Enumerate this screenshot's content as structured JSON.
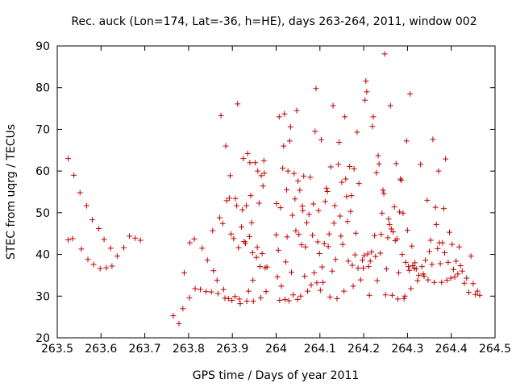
{
  "chart_data": {
    "type": "scatter",
    "title": "Rec. auck (Lon=174, Lat=-36, h=HE), days 263-264, 2011, window 002",
    "xlabel": "GPS time / Days of year 2011",
    "ylabel": "STEC from uqrg / TECUs",
    "xlim": [
      263.5,
      264.5
    ],
    "ylim": [
      20,
      90
    ],
    "xticks": [
      263.5,
      263.6,
      263.7,
      263.8,
      263.9,
      264.0,
      264.1,
      264.2,
      264.3,
      264.4,
      264.5
    ],
    "xtick_labels": [
      "263.5",
      "263.6",
      "263.7",
      "263.8",
      "263.9",
      "264",
      "264.1",
      "264.2",
      "264.3",
      "264.4",
      "264.5"
    ],
    "yticks": [
      20,
      30,
      40,
      50,
      60,
      70,
      80,
      90
    ],
    "ytick_labels": [
      "20",
      "30",
      "40",
      "50",
      "60",
      "70",
      "80",
      "90"
    ],
    "grid": false,
    "legend": "none",
    "marker": "plus",
    "color": "#c00000",
    "points": [
      [
        263.525,
        63.0
      ],
      [
        263.525,
        43.5
      ],
      [
        263.535,
        43.8
      ],
      [
        263.538,
        59.0
      ],
      [
        263.552,
        54.8
      ],
      [
        263.555,
        41.3
      ],
      [
        263.567,
        51.7
      ],
      [
        263.57,
        38.8
      ],
      [
        263.58,
        48.3
      ],
      [
        263.583,
        37.6
      ],
      [
        263.595,
        46.2
      ],
      [
        263.598,
        36.6
      ],
      [
        263.607,
        43.6
      ],
      [
        263.612,
        36.8
      ],
      [
        263.622,
        41.5
      ],
      [
        263.625,
        37.2
      ],
      [
        263.637,
        39.6
      ],
      [
        263.652,
        41.6
      ],
      [
        263.665,
        44.4
      ],
      [
        263.678,
        43.9
      ],
      [
        263.69,
        43.4
      ],
      [
        263.765,
        25.3
      ],
      [
        263.778,
        23.4
      ],
      [
        263.787,
        27.0
      ],
      [
        263.79,
        35.6
      ],
      [
        263.802,
        29.6
      ],
      [
        263.803,
        42.8
      ],
      [
        263.813,
        43.7
      ],
      [
        263.815,
        31.8
      ],
      [
        263.827,
        31.6
      ],
      [
        263.831,
        41.5
      ],
      [
        263.84,
        31.1
      ],
      [
        263.843,
        38.6
      ],
      [
        263.852,
        31.0
      ],
      [
        263.855,
        45.7
      ],
      [
        263.857,
        36.1
      ],
      [
        263.865,
        33.8
      ],
      [
        263.867,
        30.6
      ],
      [
        263.871,
        48.8
      ],
      [
        263.874,
        73.3
      ],
      [
        263.878,
        47.4
      ],
      [
        263.88,
        31.6
      ],
      [
        263.883,
        29.5
      ],
      [
        263.885,
        66.0
      ],
      [
        263.887,
        52.9
      ],
      [
        263.891,
        29.4
      ],
      [
        263.893,
        53.5
      ],
      [
        263.895,
        58.9
      ],
      [
        263.897,
        44.9
      ],
      [
        263.899,
        29.0
      ],
      [
        263.903,
        43.8
      ],
      [
        263.906,
        29.9
      ],
      [
        263.907,
        53.4
      ],
      [
        263.91,
        51.7
      ],
      [
        263.912,
        76.1
      ],
      [
        263.914,
        41.6
      ],
      [
        263.916,
        29.3
      ],
      [
        263.918,
        28.2
      ],
      [
        263.921,
        46.6
      ],
      [
        263.923,
        50.7
      ],
      [
        263.925,
        63.0
      ],
      [
        263.927,
        43.1
      ],
      [
        263.93,
        42.7
      ],
      [
        263.932,
        51.7
      ],
      [
        263.933,
        28.8
      ],
      [
        263.935,
        64.2
      ],
      [
        263.937,
        31.2
      ],
      [
        263.939,
        44.3
      ],
      [
        263.94,
        62.0
      ],
      [
        263.942,
        54.1
      ],
      [
        263.944,
        47.6
      ],
      [
        263.946,
        40.4
      ],
      [
        263.947,
        33.8
      ],
      [
        263.948,
        28.8
      ],
      [
        263.952,
        62.0
      ],
      [
        263.955,
        39.3
      ],
      [
        263.957,
        41.7
      ],
      [
        263.958,
        60.0
      ],
      [
        263.961,
        52.3
      ],
      [
        263.963,
        37.1
      ],
      [
        263.965,
        29.6
      ],
      [
        263.966,
        58.9
      ],
      [
        263.968,
        40.2
      ],
      [
        263.97,
        56.4
      ],
      [
        263.972,
        62.5
      ],
      [
        263.973,
        59.5
      ],
      [
        263.975,
        36.8
      ],
      [
        263.977,
        31.1
      ],
      [
        263.979,
        37.0
      ],
      [
        264.0,
        44.7
      ],
      [
        264.001,
        52.2
      ],
      [
        264.003,
        34.6
      ],
      [
        264.005,
        41.0
      ],
      [
        264.007,
        73.0
      ],
      [
        264.008,
        29.0
      ],
      [
        264.01,
        51.2
      ],
      [
        264.012,
        32.4
      ],
      [
        264.015,
        60.7
      ],
      [
        264.017,
        66.0
      ],
      [
        264.019,
        73.7
      ],
      [
        264.02,
        29.2
      ],
      [
        264.022,
        38.2
      ],
      [
        264.024,
        55.5
      ],
      [
        264.025,
        44.2
      ],
      [
        264.027,
        60.0
      ],
      [
        264.029,
        28.9
      ],
      [
        264.031,
        67.2
      ],
      [
        264.033,
        70.6
      ],
      [
        264.035,
        35.7
      ],
      [
        264.037,
        49.4
      ],
      [
        264.039,
        30.3
      ],
      [
        264.041,
        59.4
      ],
      [
        264.043,
        53.3
      ],
      [
        264.045,
        45.7
      ],
      [
        264.047,
        74.5
      ],
      [
        264.049,
        29.2
      ],
      [
        264.05,
        57.6
      ],
      [
        264.052,
        44.8
      ],
      [
        264.054,
        55.4
      ],
      [
        264.056,
        30.0
      ],
      [
        264.058,
        42.3
      ],
      [
        264.06,
        51.6
      ],
      [
        264.061,
        50.5
      ],
      [
        264.063,
        58.8
      ],
      [
        264.065,
        34.8
      ],
      [
        264.067,
        41.8
      ],
      [
        264.07,
        47.6
      ],
      [
        264.072,
        31.2
      ],
      [
        264.075,
        49.6
      ],
      [
        264.078,
        58.5
      ],
      [
        264.08,
        32.7
      ],
      [
        264.083,
        44.6
      ],
      [
        264.085,
        52.1
      ],
      [
        264.087,
        35.6
      ],
      [
        264.089,
        69.5
      ],
      [
        264.091,
        79.8
      ],
      [
        264.093,
        33.2
      ],
      [
        264.095,
        43.0
      ],
      [
        264.097,
        50.5
      ],
      [
        264.099,
        40.2
      ],
      [
        264.101,
        31.4
      ],
      [
        264.103,
        67.5
      ],
      [
        264.105,
        37.0
      ],
      [
        264.107,
        33.3
      ],
      [
        264.11,
        42.6
      ],
      [
        264.112,
        52.7
      ],
      [
        264.115,
        55.9
      ],
      [
        264.117,
        55.1
      ],
      [
        264.119,
        41.9
      ],
      [
        264.121,
        44.9
      ],
      [
        264.123,
        29.8
      ],
      [
        264.125,
        61.0
      ],
      [
        264.128,
        36.0
      ],
      [
        264.13,
        75.7
      ],
      [
        264.132,
        47.5
      ],
      [
        264.134,
        51.7
      ],
      [
        264.136,
        38.8
      ],
      [
        264.139,
        29.4
      ],
      [
        264.142,
        61.6
      ],
      [
        264.144,
        66.9
      ],
      [
        264.146,
        49.2
      ],
      [
        264.148,
        44.4
      ],
      [
        264.15,
        57.3
      ],
      [
        264.152,
        42.4
      ],
      [
        264.155,
        31.2
      ],
      [
        264.157,
        73.0
      ],
      [
        264.159,
        58.1
      ],
      [
        264.161,
        53.9
      ],
      [
        264.163,
        47.9
      ],
      [
        264.165,
        38.4
      ],
      [
        264.168,
        61.1
      ],
      [
        264.17,
        50.3
      ],
      [
        264.172,
        54.1
      ],
      [
        264.174,
        37.4
      ],
      [
        264.176,
        32.4
      ],
      [
        264.178,
        60.5
      ],
      [
        264.18,
        39.9
      ],
      [
        264.182,
        45.1
      ],
      [
        264.185,
        69.3
      ],
      [
        264.187,
        36.7
      ],
      [
        264.189,
        57.0
      ],
      [
        264.193,
        33.9
      ],
      [
        264.197,
        38.6
      ],
      [
        264.199,
        36.7
      ],
      [
        264.201,
        39.7
      ],
      [
        264.203,
        77.0
      ],
      [
        264.205,
        81.6
      ],
      [
        264.207,
        79.0
      ],
      [
        264.209,
        40.1
      ],
      [
        264.211,
        37.1
      ],
      [
        264.213,
        30.2
      ],
      [
        264.215,
        38.4
      ],
      [
        264.218,
        40.6
      ],
      [
        264.22,
        70.7
      ],
      [
        264.222,
        73.0
      ],
      [
        264.225,
        44.5
      ],
      [
        264.227,
        39.5
      ],
      [
        264.229,
        59.6
      ],
      [
        264.231,
        33.7
      ],
      [
        264.233,
        63.7
      ],
      [
        264.235,
        61.7
      ],
      [
        264.238,
        40.3
      ],
      [
        264.24,
        44.8
      ],
      [
        264.242,
        49.9
      ],
      [
        264.244,
        55.4
      ],
      [
        264.246,
        54.6
      ],
      [
        264.248,
        88.1
      ],
      [
        264.25,
        30.3
      ],
      [
        264.252,
        36.5
      ],
      [
        264.255,
        44.0
      ],
      [
        264.257,
        48.5
      ],
      [
        264.259,
        47.2
      ],
      [
        264.261,
        75.7
      ],
      [
        264.263,
        46.1
      ],
      [
        264.265,
        30.2
      ],
      [
        264.267,
        45.4
      ],
      [
        264.27,
        51.4
      ],
      [
        264.272,
        43.3
      ],
      [
        264.274,
        61.8
      ],
      [
        264.276,
        43.7
      ],
      [
        264.278,
        29.3
      ],
      [
        264.28,
        35.6
      ],
      [
        264.282,
        50.2
      ],
      [
        264.284,
        58.1
      ],
      [
        264.286,
        57.8
      ],
      [
        264.288,
        40.0
      ],
      [
        264.29,
        49.9
      ],
      [
        264.292,
        29.4
      ],
      [
        264.294,
        30.0
      ],
      [
        264.296,
        38.1
      ],
      [
        264.298,
        67.2
      ],
      [
        264.3,
        45.8
      ],
      [
        264.302,
        37.1
      ],
      [
        264.304,
        36.2
      ],
      [
        264.306,
        78.5
      ],
      [
        264.308,
        31.8
      ],
      [
        264.31,
        42.0
      ],
      [
        264.312,
        37.3
      ],
      [
        264.315,
        36.7
      ],
      [
        264.317,
        38.0
      ],
      [
        264.32,
        36.5
      ],
      [
        264.323,
        33.7
      ],
      [
        264.326,
        35.0
      ],
      [
        264.33,
        61.6
      ],
      [
        264.333,
        37.1
      ],
      [
        264.336,
        35.3
      ],
      [
        264.338,
        34.8
      ],
      [
        264.341,
        38.6
      ],
      [
        264.345,
        53.0
      ],
      [
        264.347,
        33.9
      ],
      [
        264.35,
        40.7
      ],
      [
        264.353,
        43.4
      ],
      [
        264.356,
        37.6
      ],
      [
        264.358,
        67.6
      ],
      [
        264.361,
        33.3
      ],
      [
        264.364,
        51.3
      ],
      [
        264.366,
        47.2
      ],
      [
        264.369,
        41.4
      ],
      [
        264.371,
        60.0
      ],
      [
        264.373,
        42.8
      ],
      [
        264.375,
        37.8
      ],
      [
        264.378,
        33.3
      ],
      [
        264.38,
        42.8
      ],
      [
        264.383,
        51.0
      ],
      [
        264.385,
        40.4
      ],
      [
        264.387,
        62.9
      ],
      [
        264.39,
        33.8
      ],
      [
        264.393,
        38.1
      ],
      [
        264.396,
        45.3
      ],
      [
        264.399,
        34.3
      ],
      [
        264.402,
        42.4
      ],
      [
        264.405,
        36.4
      ],
      [
        264.408,
        34.6
      ],
      [
        264.411,
        38.4
      ],
      [
        264.415,
        35.3
      ],
      [
        264.418,
        41.8
      ],
      [
        264.421,
        37.3
      ],
      [
        264.425,
        36.0
      ],
      [
        264.43,
        33.1
      ],
      [
        264.435,
        34.3
      ],
      [
        264.44,
        30.9
      ],
      [
        264.445,
        39.6
      ],
      [
        264.45,
        33.0
      ],
      [
        264.455,
        30.4
      ],
      [
        264.46,
        31.2
      ],
      [
        264.465,
        30.2
      ]
    ]
  }
}
